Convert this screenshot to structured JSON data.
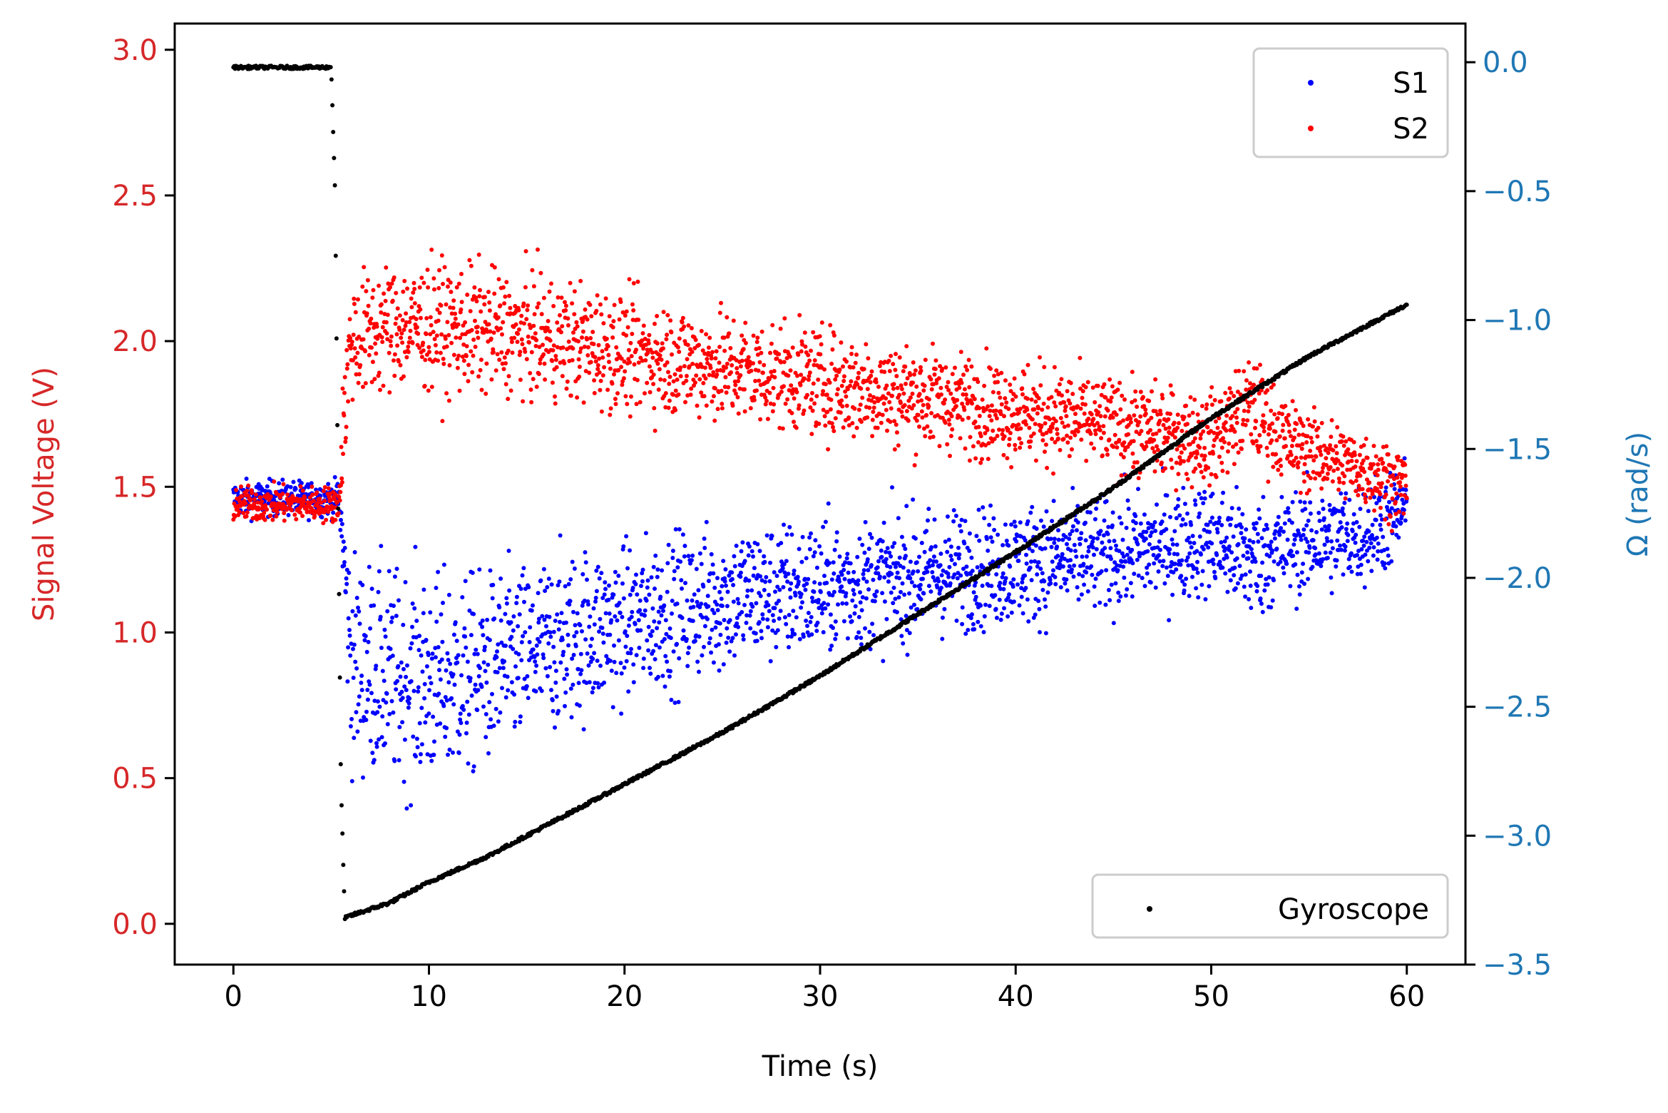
{
  "chart_data": {
    "type": "scatter",
    "xlabel": "Time (s)",
    "ylabel_left": "Signal Voltage (V)",
    "ylabel_right": "Ω (rad/s)",
    "xlim": [
      -3,
      63
    ],
    "ylim_left": [
      -0.14,
      3.09
    ],
    "ylim_right": [
      -3.5,
      0.15
    ],
    "x_ticks": [
      0,
      10,
      20,
      30,
      40,
      50,
      60
    ],
    "y_left_ticks": [
      0.0,
      0.5,
      1.0,
      1.5,
      2.0,
      2.5,
      3.0
    ],
    "y_right_ticks": [
      0.0,
      -0.5,
      -1.0,
      -1.5,
      -2.0,
      -2.5,
      -3.0,
      -3.5
    ],
    "x_tick_labels": [
      "0",
      "10",
      "20",
      "30",
      "40",
      "50",
      "60"
    ],
    "y_left_tick_labels": [
      "0.0",
      "0.5",
      "1.0",
      "1.5",
      "2.0",
      "2.5",
      "3.0"
    ],
    "y_right_tick_labels": [
      "0.0",
      "−0.5",
      "−1.0",
      "−1.5",
      "−2.0",
      "−2.5",
      "−3.0",
      "−3.5"
    ],
    "grid": false,
    "legends": [
      {
        "placement": "top-right",
        "entries": [
          "S1",
          "S2"
        ]
      },
      {
        "placement": "bottom-right",
        "entries": [
          "Gyroscope"
        ]
      }
    ],
    "colors": {
      "left_axis": "#d62728",
      "right_axis": "#1f77b4",
      "S1": "#0000ff",
      "S2": "#ff0000",
      "Gyroscope": "#000000"
    },
    "series": [
      {
        "name": "S1",
        "axis": "left",
        "color": "#0000ff",
        "x": [
          0.0,
          5.4,
          5.6,
          6.0,
          8.0,
          10.0,
          12.0,
          14.0,
          16.0,
          18.0,
          20.0,
          22.0,
          24.0,
          26.0,
          28.0,
          30.0,
          32.0,
          34.0,
          36.0,
          38.0,
          40.0,
          42.0,
          44.0,
          46.0,
          48.0,
          50.0,
          52.0,
          54.0,
          56.0,
          58.0,
          60.0
        ],
        "y": [
          1.46,
          1.46,
          1.3,
          0.9,
          0.85,
          0.83,
          0.85,
          0.9,
          0.95,
          1.0,
          1.03,
          1.07,
          1.1,
          1.13,
          1.14,
          1.15,
          1.17,
          1.19,
          1.21,
          1.22,
          1.23,
          1.25,
          1.26,
          1.28,
          1.3,
          1.32,
          1.25,
          1.3,
          1.32,
          1.35,
          1.42
        ],
        "spread": [
          0.05,
          0.05,
          0.12,
          0.3,
          0.3,
          0.3,
          0.28,
          0.26,
          0.25,
          0.24,
          0.22,
          0.22,
          0.21,
          0.2,
          0.2,
          0.19,
          0.18,
          0.18,
          0.18,
          0.17,
          0.17,
          0.17,
          0.16,
          0.16,
          0.16,
          0.16,
          0.18,
          0.15,
          0.15,
          0.15,
          0.14
        ]
      },
      {
        "name": "S2",
        "axis": "left",
        "color": "#ff0000",
        "x": [
          0.0,
          5.4,
          5.6,
          6.0,
          8.0,
          10.0,
          12.0,
          14.0,
          16.0,
          18.0,
          20.0,
          22.0,
          24.0,
          26.0,
          28.0,
          30.0,
          32.0,
          34.0,
          36.0,
          38.0,
          40.0,
          42.0,
          44.0,
          46.0,
          48.0,
          50.0,
          52.0,
          54.0,
          56.0,
          58.0,
          60.0
        ],
        "y": [
          1.44,
          1.44,
          1.7,
          2.0,
          2.05,
          2.05,
          2.04,
          2.03,
          2.01,
          1.99,
          1.96,
          1.94,
          1.92,
          1.9,
          1.88,
          1.86,
          1.84,
          1.82,
          1.8,
          1.78,
          1.76,
          1.74,
          1.72,
          1.7,
          1.68,
          1.66,
          1.78,
          1.65,
          1.6,
          1.56,
          1.5
        ],
        "spread": [
          0.05,
          0.05,
          0.15,
          0.18,
          0.18,
          0.18,
          0.18,
          0.17,
          0.17,
          0.17,
          0.16,
          0.16,
          0.16,
          0.16,
          0.15,
          0.15,
          0.15,
          0.15,
          0.14,
          0.14,
          0.14,
          0.14,
          0.13,
          0.13,
          0.13,
          0.13,
          0.14,
          0.12,
          0.11,
          0.11,
          0.11
        ]
      },
      {
        "name": "Gyroscope",
        "axis": "right",
        "color": "#000000",
        "x": [
          0.0,
          4.8,
          5.0,
          5.2,
          5.5,
          5.7,
          6.0,
          8.0,
          10.0,
          13.0,
          16.0,
          20.0,
          25.0,
          30.0,
          35.0,
          40.0,
          45.0,
          50.0,
          55.0,
          58.0,
          60.0
        ],
        "y": [
          -0.02,
          -0.02,
          -0.02,
          -0.5,
          -2.8,
          -3.32,
          -3.31,
          -3.26,
          -3.18,
          -3.08,
          -2.96,
          -2.8,
          -2.6,
          -2.38,
          -2.14,
          -1.9,
          -1.65,
          -1.38,
          -1.14,
          -1.02,
          -0.94
        ]
      }
    ]
  }
}
